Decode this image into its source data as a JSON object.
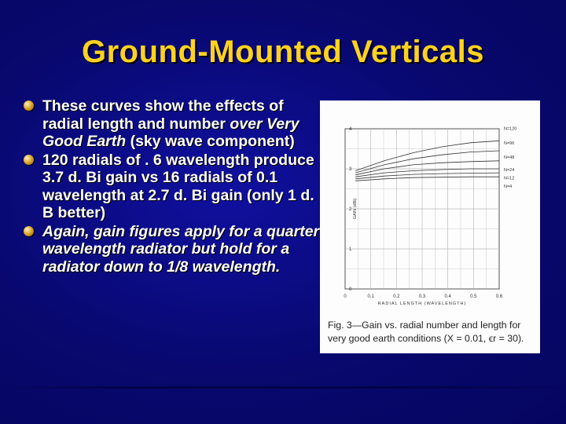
{
  "slide": {
    "title": "Ground-Mounted Verticals",
    "bullets": [
      {
        "normal_a": "These curves show the effects of radial length and number ",
        "italic": "over Very Good Earth",
        "normal_b": " (sky wave component)"
      },
      {
        "text": "120 radials of . 6 wavelength produce 3.7 d. Bi gain vs 16 radials of 0.1 wavelength at 2.7 d. Bi gain (only 1 d. B better)"
      },
      {
        "text": "Again, gain figures apply for a quarter wavelength radiator but hold for a radiator down to 1/8 wavelength."
      }
    ]
  },
  "figure": {
    "caption": "Fig. 3—Gain vs. radial number and length for very good earth conditions (X = 0.01, ϵr = 30)."
  },
  "chart_data": {
    "type": "line",
    "xlabel": "RADIAL LENGTH (WAVELENGTH)",
    "ylabel": "GAIN (dBi)",
    "xlim": [
      0,
      0.6
    ],
    "ylim": [
      0,
      4
    ],
    "x_ticks": [
      "0",
      "0.1",
      "0.2",
      "0.3",
      "0.4",
      "0.5",
      "0.6"
    ],
    "y_ticks": [
      "0",
      "1",
      "2",
      "3",
      "4"
    ],
    "grid": true,
    "legend_placement": "right",
    "x": [
      0.1,
      0.2,
      0.3,
      0.4,
      0.5,
      0.6
    ],
    "series": [
      {
        "name": "N=120",
        "values": [
          2.95,
          3.2,
          3.4,
          3.55,
          3.65,
          3.7
        ]
      },
      {
        "name": "N=96",
        "values": [
          2.9,
          3.1,
          3.25,
          3.35,
          3.42,
          3.45
        ]
      },
      {
        "name": "N=48",
        "values": [
          2.85,
          3.0,
          3.1,
          3.15,
          3.18,
          3.2
        ]
      },
      {
        "name": "N=24",
        "values": [
          2.8,
          2.9,
          2.95,
          2.98,
          3.0,
          3.0
        ]
      },
      {
        "name": "N=12",
        "values": [
          2.75,
          2.82,
          2.86,
          2.88,
          2.89,
          2.9
        ]
      },
      {
        "name": "N=4",
        "values": [
          2.7,
          2.75,
          2.78,
          2.79,
          2.8,
          2.8
        ]
      }
    ]
  }
}
